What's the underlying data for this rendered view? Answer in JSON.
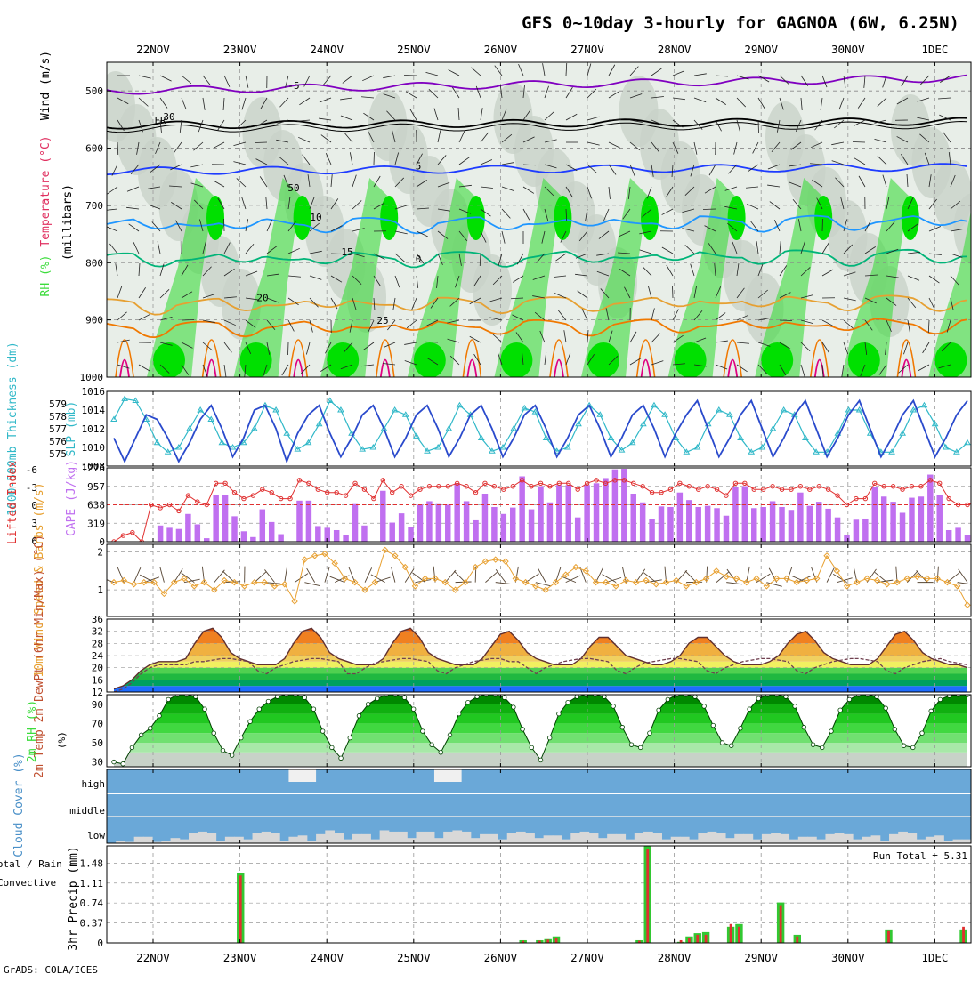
{
  "title": "GFS 0~10day 3-hourly for GAGNOA (6W, 6.25N)",
  "credit": "GrADS: COLA/IGES",
  "dates": [
    "22NOV",
    "23NOV",
    "24NOV",
    "25NOV",
    "26NOV",
    "27NOV",
    "28NOV",
    "29NOV",
    "30NOV",
    "1DEC"
  ],
  "colors": {
    "rh_green": "#3cdc3c",
    "rh_light": "#c8d2c8",
    "temp_purple": "#8000c0",
    "temp_fr": "#000000",
    "temp_5": "#1e3cff",
    "temp_10": "#1e96ff",
    "temp_15": "#00b478",
    "temp_20": "#e6a032",
    "temp_25": "#f07800",
    "temp_30": "#e00080",
    "thick_line": "#2a4acc",
    "slp_line": "#30b8c8",
    "li_line": "#e03030",
    "cape_bar": "#c070f0",
    "wind_line": "#e8a030",
    "cloud_blue": "#6aa8d8",
    "cloud_grey": "#d8d8d8",
    "precip_green": "#32c832",
    "precip_red": "#e03030"
  },
  "chart_data": [
    {
      "type": "heatmap",
      "id": "upper-air",
      "ylabel": "(millibars)",
      "legend": [
        "RH (%)",
        "Temperature (°C)",
        "Wind (m/s)"
      ],
      "y_ticks": [
        500,
        600,
        700,
        800,
        900,
        1000
      ],
      "ylim": [
        1000,
        450
      ],
      "isotherm_labels": [
        {
          "label": "-5",
          "level": 500
        },
        {
          "label": "FR",
          "level": 560
        },
        {
          "label": "5",
          "level": 640
        },
        {
          "label": "10",
          "level": 730
        },
        {
          "label": "15",
          "level": 790
        },
        {
          "label": "20",
          "level": 870
        },
        {
          "label": "25",
          "level": 910
        }
      ],
      "rh_labels": [
        "30",
        "50",
        "0"
      ]
    },
    {
      "type": "line",
      "id": "thickness-slp",
      "ylabel_left": "1000-500mb Thickness (dm)",
      "ylabel_right": "SLP (mb)",
      "left_ticks": [
        575,
        576,
        577,
        578,
        579
      ],
      "right_ticks": [
        1008,
        1010,
        1012,
        1014,
        1016
      ],
      "thickness": [
        1011,
        1008.5,
        1011,
        1013.5,
        1013,
        1011,
        1008.5,
        1010.5,
        1013,
        1014.5,
        1012,
        1009,
        1011,
        1014,
        1014.5,
        1012,
        1008.5,
        1011.5,
        1013.5,
        1014.5,
        1011.5,
        1009,
        1011,
        1013.5,
        1014.5,
        1012,
        1009,
        1011,
        1013.5,
        1014.5,
        1012,
        1009,
        1011,
        1013.5,
        1014.5,
        1012,
        1009,
        1011,
        1013.5,
        1014.5,
        1012,
        1009,
        1011,
        1013.5,
        1014.5,
        1012,
        1009,
        1011,
        1013.5,
        1014.5,
        1012,
        1009,
        1011.5,
        1013.5,
        1015,
        1012,
        1009,
        1011,
        1013.5,
        1015,
        1012,
        1009,
        1011,
        1013.5,
        1015,
        1012,
        1009,
        1011,
        1013.5,
        1015,
        1012,
        1009,
        1011,
        1013.5,
        1015,
        1012,
        1009,
        1011,
        1013.5,
        1015
      ],
      "slp": [
        1013,
        1015.2,
        1015,
        1013,
        1010.5,
        1009.5,
        1010,
        1012,
        1014,
        1013,
        1010.5,
        1010,
        1010.5,
        1012,
        1014.5,
        1014,
        1011.5,
        1009.8,
        1010.5,
        1012.5,
        1015,
        1014,
        1011.5,
        1009.8,
        1010,
        1012,
        1014,
        1013.5,
        1011.2,
        1009.6,
        1010,
        1012,
        1014.5,
        1013.5,
        1011,
        1009.6,
        1010,
        1012,
        1014.2,
        1013.8,
        1011,
        1009.6,
        1010,
        1012.5,
        1014.5,
        1013.5,
        1011,
        1009.7,
        1010.5,
        1012.5,
        1014.5,
        1013.5,
        1011,
        1009.5,
        1010,
        1012.5,
        1014,
        1013.5,
        1011,
        1009.5,
        1010,
        1012,
        1014,
        1013.5,
        1011,
        1009.5,
        1009.5,
        1011.5,
        1014,
        1014,
        1011.5,
        1009.5,
        1009.5,
        1011.5,
        1014,
        1014.5,
        1012.5,
        1010,
        1009.5,
        1010.5
      ]
    },
    {
      "type": "bar",
      "id": "cape-li",
      "ylabel_left": "Lifted Index",
      "ylabel_right": "CAPE (J/kg)",
      "left_ticks": [
        "-6",
        "-3",
        "0",
        "3",
        "6"
      ],
      "right_ticks": [
        0,
        319,
        638,
        957,
        1276
      ],
      "cape": [
        0,
        0,
        0,
        0,
        0,
        280,
        240,
        220,
        480,
        300,
        60,
        810,
        810,
        440,
        180,
        80,
        560,
        340,
        130,
        0,
        710,
        710,
        270,
        240,
        200,
        120,
        650,
        280,
        0,
        880,
        330,
        490,
        250,
        640,
        700,
        650,
        640,
        1010,
        700,
        370,
        830,
        600,
        480,
        590,
        1130,
        560,
        960,
        680,
        980,
        980,
        420,
        980,
        1010,
        1100,
        1250,
        1260,
        830,
        680,
        390,
        610,
        600,
        850,
        720,
        600,
        620,
        580,
        450,
        950,
        960,
        580,
        600,
        700,
        600,
        550,
        850,
        620,
        690,
        570,
        420,
        120,
        380,
        400,
        950,
        780,
        690,
        500,
        760,
        780,
        1160,
        800,
        200,
        240,
        120
      ],
      "li": [
        6,
        5,
        4.5,
        6,
        0,
        0.5,
        0,
        1,
        -1.5,
        -0.5,
        0,
        -3.5,
        -3.5,
        -2,
        -1,
        -1.5,
        -2.5,
        -2,
        -1,
        -1,
        -4,
        -3.5,
        -2.5,
        -2,
        -2,
        -1.5,
        -3.5,
        -2.5,
        -1,
        -4,
        -2,
        -3,
        -1.5,
        -2.5,
        -3,
        -3,
        -3,
        -3.5,
        -3,
        -2,
        -3.5,
        -3,
        -2.5,
        -3,
        -4,
        -3,
        -3.5,
        -3,
        -3.5,
        -3.5,
        -2.5,
        -3.5,
        -4,
        -3.5,
        -4,
        -4,
        -3.5,
        -3,
        -2,
        -2,
        -2.5,
        -3.5,
        -3,
        -2.5,
        -3,
        -2.5,
        -1.5,
        -3.5,
        -3.5,
        -2.5,
        -2.5,
        -3,
        -2.5,
        -2.5,
        -3,
        -2.5,
        -3,
        -2.5,
        -1.5,
        0,
        -1,
        -1,
        -3.5,
        -3,
        -3,
        -2.5,
        -3,
        -3,
        -4,
        -3.5,
        -1,
        0,
        0,
        -0.5
      ]
    },
    {
      "type": "line",
      "id": "wind10m",
      "ylabel": "10m Wind Speed & Barbs (m/s)",
      "y_ticks": [
        1,
        2
      ],
      "ylim": [
        0.3,
        2.2
      ],
      "speed": [
        1.2,
        1.25,
        1.15,
        1.2,
        1.2,
        0.9,
        1.2,
        1.3,
        1.1,
        1.2,
        1.0,
        1.25,
        1.2,
        1.1,
        1.2,
        1.2,
        1.1,
        1.15,
        0.7,
        1.8,
        1.9,
        1.95,
        1.7,
        1.3,
        1.2,
        1.0,
        1.2,
        2.05,
        1.9,
        1.6,
        1.1,
        1.3,
        1.3,
        1.2,
        1.0,
        1.2,
        1.6,
        1.75,
        1.8,
        1.75,
        1.3,
        1.2,
        1.1,
        1.0,
        1.2,
        1.4,
        1.6,
        1.5,
        1.2,
        1.2,
        1.1,
        1.25,
        1.2,
        1.25,
        1.15,
        1.2,
        1.25,
        1.1,
        1.2,
        1.3,
        1.5,
        1.35,
        1.3,
        1.2,
        1.3,
        1.1,
        1.3,
        1.3,
        1.2,
        1.25,
        1.3,
        1.9,
        1.5,
        1.1,
        1.2,
        1.3,
        1.25,
        1.15,
        1.2,
        1.3,
        1.35,
        1.3,
        1.3,
        1.2,
        1.1,
        0.6
      ]
    },
    {
      "type": "area",
      "id": "temp2m",
      "ylabel": "2m Temp 2m DewPt (6hr Min/Max) (°C)",
      "y_ticks": [
        12,
        16,
        20,
        24,
        28,
        32,
        36
      ],
      "ylim": [
        12,
        36
      ],
      "temp": [
        13,
        14,
        16,
        19,
        21,
        22,
        22,
        22,
        23,
        28,
        32,
        33,
        30,
        25,
        23,
        22,
        21,
        21,
        21,
        23,
        28,
        32,
        33,
        30,
        25,
        23,
        22,
        21,
        21,
        21,
        23,
        28,
        32,
        33,
        30,
        25,
        23,
        22,
        21,
        21,
        21,
        23,
        27,
        31,
        32,
        29,
        25,
        23,
        22,
        21,
        21,
        21,
        23,
        27,
        30,
        30,
        27,
        24,
        23,
        22,
        21,
        21,
        22,
        24,
        28,
        30,
        30,
        27,
        24,
        22,
        21,
        21,
        21,
        22,
        24,
        28,
        31,
        32,
        29,
        25,
        23,
        22,
        21,
        21,
        21,
        23,
        27,
        31,
        32,
        29,
        25,
        23,
        22,
        21,
        21,
        20
      ],
      "dewpt": [
        12,
        13,
        15,
        18,
        20,
        21,
        21,
        21,
        21,
        22,
        22,
        22.5,
        23,
        23,
        22.5,
        22,
        19,
        18,
        20,
        21,
        22,
        22.5,
        23,
        23,
        22.5,
        22,
        18,
        18,
        20,
        21.5,
        22,
        22.5,
        23,
        23,
        22.5,
        22,
        19,
        18,
        20,
        21,
        22,
        22.5,
        23,
        23,
        22,
        22,
        20,
        18,
        20,
        21,
        22,
        22.5,
        23,
        23,
        22.5,
        22,
        19,
        18,
        20,
        21.5,
        22,
        22.5,
        23,
        23,
        22.5,
        22,
        19,
        18,
        20,
        21,
        22,
        22.5,
        23,
        23,
        22.5,
        22,
        19,
        18,
        20,
        21,
        22,
        22.5,
        23,
        23,
        22.5,
        22,
        19,
        18,
        20,
        21,
        22,
        22.5,
        23,
        22,
        21.5,
        21
      ]
    },
    {
      "type": "area",
      "id": "rh2m",
      "ylabel": "2m RH (%)",
      "y_ticks": [
        30,
        50,
        70,
        90
      ],
      "ylim": [
        25,
        100
      ],
      "rh": [
        30,
        28,
        45,
        58,
        65,
        78,
        95,
        100,
        100,
        98,
        85,
        60,
        42,
        37,
        55,
        72,
        85,
        93,
        98,
        100,
        100,
        97,
        85,
        62,
        45,
        34,
        55,
        78,
        90,
        96,
        100,
        100,
        97,
        85,
        62,
        48,
        40,
        58,
        80,
        92,
        98,
        100,
        100,
        97,
        87,
        64,
        45,
        32,
        55,
        80,
        92,
        98,
        100,
        100,
        98,
        88,
        66,
        48,
        45,
        60,
        84,
        95,
        100,
        100,
        98,
        88,
        68,
        50,
        47,
        65,
        85,
        96,
        100,
        100,
        98,
        88,
        66,
        48,
        45,
        62,
        84,
        95,
        100,
        100,
        98,
        86,
        64,
        47,
        45,
        60,
        83,
        95,
        99,
        100,
        100
      ]
    },
    {
      "type": "bar",
      "id": "cloud",
      "ylabel": "Cloud Cover (%)",
      "y_ticks": [
        "high",
        "middle",
        "low"
      ],
      "high_gaps": [
        0,
        0,
        0,
        0,
        0,
        0,
        0,
        0,
        0,
        0,
        0,
        0,
        0,
        0,
        0,
        0,
        0,
        0,
        0,
        0,
        30,
        0,
        0,
        0,
        0,
        0,
        0,
        0,
        0,
        0,
        0,
        0,
        0,
        0,
        0,
        0,
        40,
        0,
        0,
        0,
        0,
        0,
        0,
        0,
        0,
        0,
        0,
        0,
        0,
        0,
        0,
        0,
        0,
        0,
        0,
        0,
        0,
        0,
        0,
        0,
        0,
        0,
        0,
        0,
        0,
        0,
        0,
        0,
        0,
        0,
        0,
        0,
        0,
        0,
        0,
        0,
        0,
        0,
        0,
        0,
        0,
        0,
        0,
        0,
        0,
        0,
        0,
        0,
        0,
        0,
        0,
        0,
        0,
        0,
        0,
        0
      ],
      "low": [
        0,
        10,
        5,
        25,
        25,
        5,
        10,
        20,
        15,
        40,
        45,
        40,
        10,
        25,
        25,
        15,
        40,
        45,
        40,
        10,
        25,
        30,
        10,
        35,
        50,
        40,
        15,
        35,
        35,
        15,
        50,
        45,
        45,
        20,
        45,
        45,
        20,
        45,
        50,
        45,
        20,
        35,
        35,
        15,
        40,
        45,
        40,
        20,
        30,
        30,
        15,
        40,
        45,
        40,
        20,
        35,
        35,
        15,
        40,
        45,
        40,
        15,
        25,
        25,
        15,
        40,
        45,
        40,
        20,
        35,
        35,
        15,
        35,
        40,
        35,
        15,
        25,
        25,
        15,
        35,
        40,
        35,
        15,
        25,
        30,
        10,
        35,
        45,
        40,
        15,
        25,
        30,
        10,
        15,
        15
      ]
    },
    {
      "type": "bar",
      "id": "precip",
      "ylabel": "3hr Precip (mm)",
      "legend": [
        "Total / Rain",
        "Convective"
      ],
      "y_ticks": [
        0,
        0.37,
        0.74,
        1.11,
        1.48
      ],
      "ylim": [
        0,
        1.8
      ],
      "run_total_label": "Run Total = 5.31",
      "total": [
        0,
        0,
        0,
        0,
        0,
        0,
        0,
        0,
        0,
        0,
        0,
        0,
        0,
        0,
        0,
        1.3,
        0,
        0,
        0,
        0,
        0,
        0,
        0,
        0,
        0,
        0,
        0,
        0,
        0,
        0,
        0,
        0,
        0,
        0,
        0,
        0,
        0,
        0,
        0,
        0,
        0,
        0,
        0,
        0,
        0,
        0,
        0,
        0,
        0,
        0.05,
        0,
        0.05,
        0.07,
        0.12,
        0,
        0,
        0,
        0,
        0,
        0,
        0,
        0,
        0,
        0.05,
        1.82,
        0,
        0,
        0,
        0.02,
        0.12,
        0.18,
        0.2,
        0,
        0,
        0.3,
        0.35,
        0,
        0,
        0,
        0,
        0.75,
        0,
        0.15,
        0,
        0,
        0,
        0,
        0,
        0,
        0,
        0,
        0,
        0,
        0.25,
        0,
        0,
        0,
        0,
        0,
        0,
        0,
        0,
        0.25,
        0
      ],
      "convective": [
        0,
        0,
        0,
        0,
        0,
        0,
        0,
        0,
        0,
        0,
        0,
        0,
        0,
        0,
        0,
        1.25,
        0,
        0,
        0,
        0,
        0,
        0,
        0,
        0,
        0,
        0,
        0,
        0,
        0,
        0,
        0,
        0,
        0,
        0,
        0,
        0,
        0,
        0,
        0,
        0,
        0,
        0,
        0,
        0,
        0,
        0,
        0,
        0,
        0,
        0.04,
        0,
        0.04,
        0.06,
        0.1,
        0,
        0,
        0,
        0,
        0,
        0,
        0,
        0,
        0,
        0.04,
        1.75,
        0,
        0,
        0,
        0.05,
        0.1,
        0.15,
        0.15,
        0,
        0,
        0.35,
        0.3,
        0,
        0,
        0,
        0,
        0.7,
        0,
        0.12,
        0,
        0,
        0,
        0,
        0,
        0,
        0,
        0,
        0,
        0,
        0.22,
        0,
        0,
        0,
        0,
        0,
        0,
        0,
        0,
        0.3,
        0
      ]
    }
  ]
}
